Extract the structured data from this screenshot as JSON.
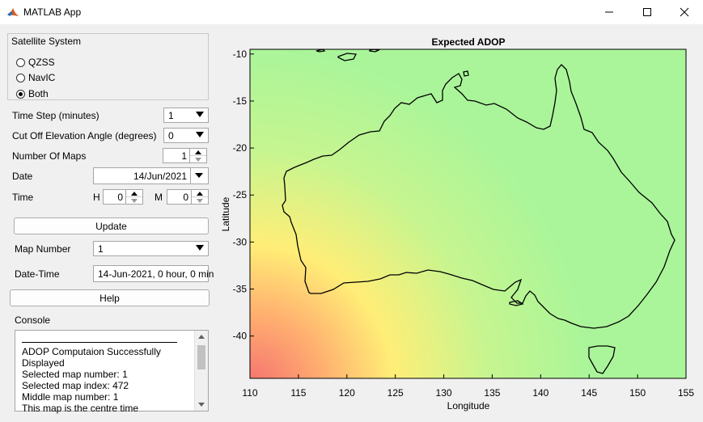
{
  "window": {
    "title": "MATLAB App",
    "icon": "matlab-logo-icon",
    "controls": [
      "minimize-icon",
      "maximize-icon",
      "close-icon"
    ]
  },
  "satellite_system": {
    "title": "Satellite System",
    "options": [
      {
        "label": "QZSS",
        "selected": false
      },
      {
        "label": "NavIC",
        "selected": false
      },
      {
        "label": "Both",
        "selected": true
      }
    ]
  },
  "settings": {
    "time_step_label": "Time Step (minutes)",
    "time_step_value": "1",
    "cutoff_label": "Cut Off Elevation Angle (degrees)",
    "cutoff_value": "0",
    "num_maps_label": "Number Of Maps",
    "num_maps_value": "1",
    "date_label": "Date",
    "date_value": "14/Jun/2021",
    "time_label": "Time",
    "hour_label": "H",
    "hour_value": "0",
    "minute_label": "M",
    "minute_value": "0",
    "update_label": "Update",
    "map_number_label": "Map Number",
    "map_number_value": "1",
    "datetime_label": "Date-Time",
    "datetime_value": "14-Jun-2021, 0 hour, 0 min",
    "help_label": "Help"
  },
  "console": {
    "title": "Console",
    "lines": [
      "ADOP Computaion Successfully",
      "Displayed",
      "Selected map number: 1",
      "Selected map index: 472",
      "Middle map number: 1",
      "This map is the centre time"
    ]
  },
  "plot": {
    "title": "Expected ADOP",
    "xlabel": "Longitude",
    "ylabel": "Latitude",
    "xticks": [
      "110",
      "115",
      "120",
      "125",
      "130",
      "135",
      "140",
      "145",
      "150",
      "155"
    ],
    "yticks": [
      "-10",
      "-15",
      "-20",
      "-25",
      "-30",
      "-35",
      "-40"
    ],
    "xlim": [
      110,
      155
    ],
    "ylim": [
      -44.5,
      -9.5
    ],
    "colors": {
      "low": "#aaf59a",
      "mid": "#ffee77",
      "high": "#f57070"
    }
  }
}
